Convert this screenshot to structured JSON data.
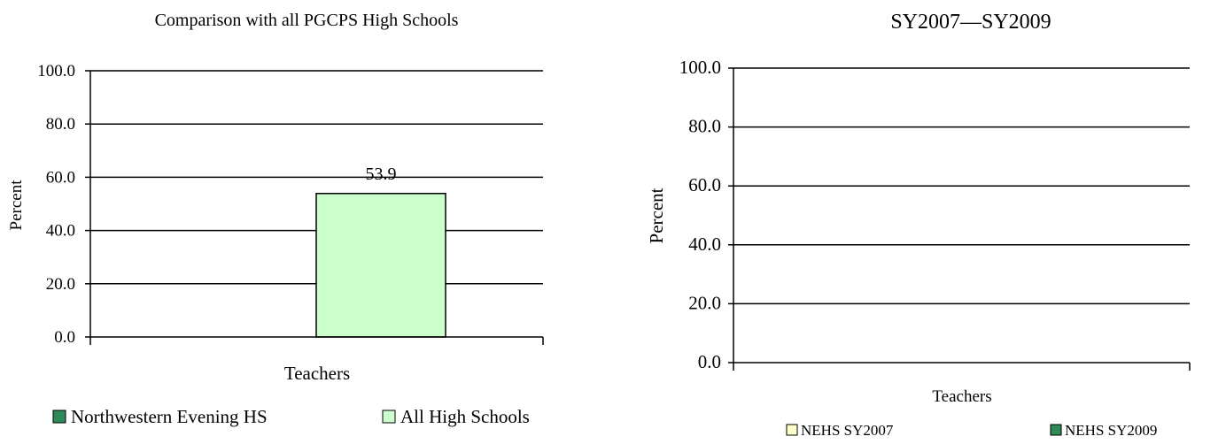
{
  "chart_data": [
    {
      "type": "bar",
      "title": "Comparison with all PGCPS High Schools",
      "ylabel": "Percent",
      "xlabel": "",
      "categories": [
        "Teachers"
      ],
      "ylim": [
        0,
        100
      ],
      "yticks": [
        "0.0",
        "20.0",
        "40.0",
        "60.0",
        "80.0",
        "100.0"
      ],
      "grid": true,
      "legend_position": "bottom",
      "series": [
        {
          "name": "Northwestern Evening HS",
          "values": [
            null
          ],
          "color": "#2e8b57"
        },
        {
          "name": "All High Schools",
          "values": [
            53.9
          ],
          "color": "#ccffcc"
        }
      ],
      "data_labels": [
        "53.9"
      ]
    },
    {
      "type": "bar",
      "title": "SY2007—SY2009",
      "ylabel": "Percent",
      "xlabel": "",
      "categories": [
        "Teachers"
      ],
      "ylim": [
        0,
        100
      ],
      "yticks": [
        "0.0",
        "20.0",
        "40.0",
        "60.0",
        "80.0",
        "100.0"
      ],
      "grid": true,
      "legend_position": "bottom",
      "series": [
        {
          "name": "NEHS SY2007",
          "values": [
            null
          ],
          "color": "#ffffcc"
        },
        {
          "name": "NEHS SY2009",
          "values": [
            null
          ],
          "color": "#2e8b57"
        }
      ]
    }
  ]
}
